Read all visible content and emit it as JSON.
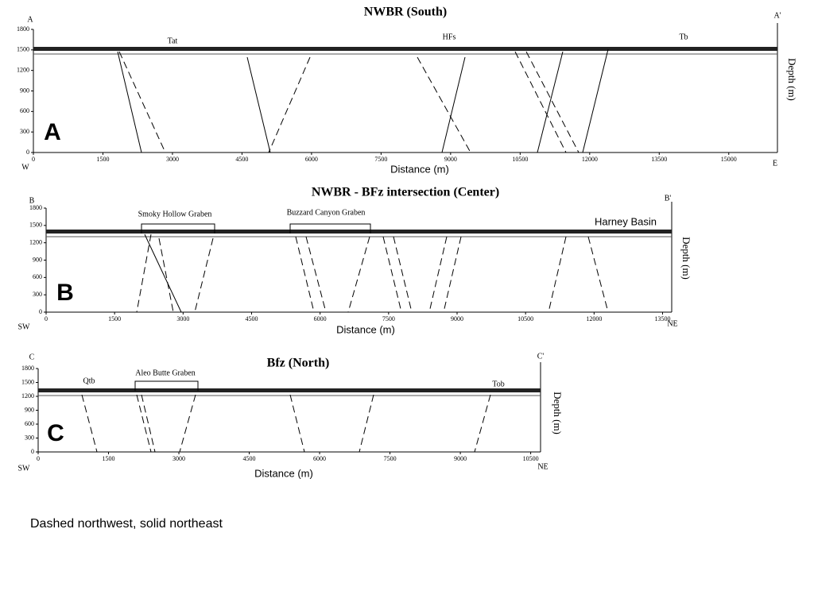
{
  "chart_data": [
    {
      "type": "cross-section",
      "title": "NWBR (South)",
      "panel_label": "A",
      "start_label": "A",
      "end_label": "A'",
      "start_direction": "W",
      "end_direction": "E",
      "x_label": "Distance (m)",
      "y_label": "Depth (m)",
      "annotations": [
        "Tat",
        "HFs",
        "Tb"
      ],
      "xlim": [
        0,
        16050
      ],
      "xticks": [
        0,
        1500,
        3000,
        4500,
        6000,
        7500,
        9000,
        10500,
        12000,
        13500,
        15000
      ],
      "ylim": [
        0,
        1800
      ],
      "yticks": [
        0,
        300,
        600,
        900,
        1200,
        1500,
        1800
      ]
    },
    {
      "type": "cross-section",
      "title": "NWBR - BFz intersection (Center)",
      "panel_label": "B",
      "start_label": "B",
      "end_label": "B'",
      "start_direction": "SW",
      "end_direction": "NE",
      "x_label": "Distance (m)",
      "y_label": "Depth (m)",
      "annotations": [
        "Smoky Hollow Graben",
        "Buzzard Canyon Graben",
        "Harney Basin"
      ],
      "xlim": [
        0,
        13700
      ],
      "xticks": [
        0,
        1500,
        3000,
        4500,
        6000,
        7500,
        9000,
        10500,
        12000,
        13500
      ],
      "ylim": [
        0,
        1800
      ],
      "yticks": [
        0,
        300,
        600,
        900,
        1200,
        1500,
        1800
      ]
    },
    {
      "type": "cross-section",
      "title": "Bfz (North)",
      "panel_label": "C",
      "start_label": "C",
      "end_label": "C'",
      "start_direction": "SW",
      "end_direction": "NE",
      "x_label": "Distance (m)",
      "y_label": "Depth (m)",
      "annotations": [
        "Qtb",
        "Aleo Butte Graben",
        "Tob"
      ],
      "xlim": [
        0,
        10710
      ],
      "xticks": [
        0,
        1500,
        3000,
        4500,
        6000,
        7500,
        9000,
        10500
      ],
      "ylim": [
        0,
        1800
      ],
      "yticks": [
        0,
        300,
        600,
        900,
        1200,
        1500,
        1800
      ]
    }
  ],
  "note": "Dashed northwest, solid northeast"
}
